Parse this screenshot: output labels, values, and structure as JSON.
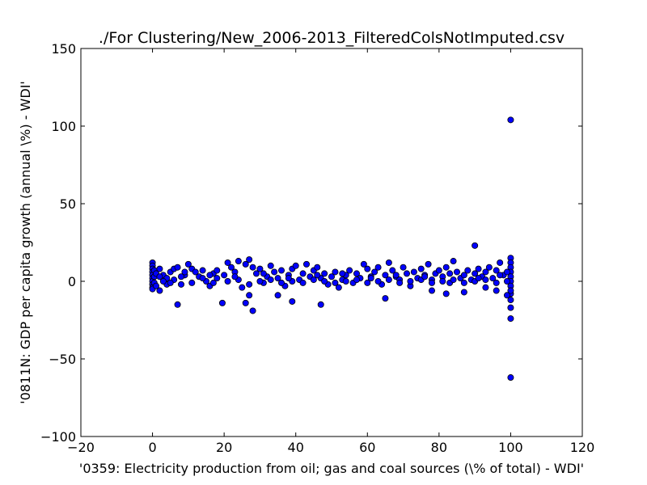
{
  "chart_data": {
    "type": "scatter",
    "title": "./For Clustering/New_2006-2013_FilteredColsNotImputed.csv",
    "xlabel": "'0359: Electricity production from oil; gas and coal sources  (\\% of total) - WDI'",
    "ylabel": "'0811N: GDP per capita growth  (annual \\%) - WDI'",
    "xlim": [
      -20,
      120
    ],
    "ylim": [
      -100,
      150
    ],
    "xticks": [
      -20,
      0,
      20,
      40,
      60,
      80,
      100,
      120
    ],
    "yticks": [
      -100,
      -50,
      0,
      50,
      100,
      150
    ],
    "xtick_labels": [
      "−20",
      "0",
      "20",
      "40",
      "60",
      "80",
      "100",
      "120"
    ],
    "ytick_labels": [
      "−100",
      "−50",
      "0",
      "50",
      "100",
      "150"
    ],
    "grid": false,
    "legend": "none",
    "marker_color": "#0000ff",
    "marker_edge_color": "#000000",
    "series": [
      {
        "points": [
          [
            100,
            104
          ],
          [
            100,
            -62
          ],
          [
            100,
            -24
          ],
          [
            100,
            -17
          ],
          [
            100,
            -12
          ],
          [
            100,
            -8
          ],
          [
            100,
            15
          ],
          [
            100,
            12
          ],
          [
            100,
            9
          ],
          [
            100,
            6
          ],
          [
            100,
            3
          ],
          [
            100,
            0
          ],
          [
            100,
            -3
          ],
          [
            100,
            -6
          ],
          [
            90,
            23
          ],
          [
            7,
            -15
          ],
          [
            19.5,
            -14
          ],
          [
            26,
            -14
          ],
          [
            28,
            -19
          ],
          [
            47,
            -15
          ],
          [
            39,
            -13
          ],
          [
            35,
            -9
          ],
          [
            27,
            -9
          ],
          [
            65,
            -11
          ],
          [
            82,
            -8
          ],
          [
            78,
            -6
          ],
          [
            96,
            -6
          ],
          [
            87,
            -7
          ],
          [
            99,
            -9
          ],
          [
            93,
            -4
          ],
          [
            0,
            12
          ],
          [
            0,
            10
          ],
          [
            0,
            8
          ],
          [
            0,
            6
          ],
          [
            0,
            4
          ],
          [
            0,
            2
          ],
          [
            0,
            0
          ],
          [
            0,
            -2
          ],
          [
            0,
            -4
          ],
          [
            0,
            -5
          ],
          [
            0.5,
            7
          ],
          [
            0.5,
            3
          ],
          [
            0.5,
            -1
          ],
          [
            1,
            5
          ],
          [
            1,
            -3
          ],
          [
            2,
            8
          ],
          [
            2,
            -6
          ],
          [
            3,
            4
          ],
          [
            4,
            2
          ],
          [
            4,
            -2
          ],
          [
            5,
            6
          ],
          [
            6,
            1
          ],
          [
            6,
            8
          ],
          [
            7,
            9
          ],
          [
            8,
            -2
          ],
          [
            9,
            4
          ],
          [
            10,
            11
          ],
          [
            11,
            8
          ],
          [
            12,
            6
          ],
          [
            13,
            3
          ],
          [
            14,
            7
          ],
          [
            15,
            0
          ],
          [
            16,
            -3
          ],
          [
            17,
            5
          ],
          [
            18,
            2
          ],
          [
            18,
            7
          ],
          [
            20,
            4
          ],
          [
            21,
            12
          ],
          [
            22,
            9
          ],
          [
            23,
            6
          ],
          [
            24,
            13
          ],
          [
            25,
            -4
          ],
          [
            26,
            11
          ],
          [
            27,
            14
          ],
          [
            28,
            9
          ],
          [
            29,
            5
          ],
          [
            30,
            8
          ],
          [
            31,
            -1
          ],
          [
            32,
            3
          ],
          [
            33,
            10
          ],
          [
            34,
            6
          ],
          [
            35,
            2
          ],
          [
            36,
            7
          ],
          [
            37,
            -3
          ],
          [
            38,
            4
          ],
          [
            39,
            8
          ],
          [
            40,
            10
          ],
          [
            41,
            1
          ],
          [
            42,
            5
          ],
          [
            43,
            11
          ],
          [
            44,
            3
          ],
          [
            45,
            7
          ],
          [
            46,
            9
          ],
          [
            47,
            2
          ],
          [
            48,
            5
          ],
          [
            49,
            -2
          ],
          [
            50,
            3
          ],
          [
            51,
            6
          ],
          [
            52,
            -4
          ],
          [
            53,
            1
          ],
          [
            54,
            4
          ],
          [
            55,
            7
          ],
          [
            56,
            -1
          ],
          [
            57,
            5
          ],
          [
            58,
            2
          ],
          [
            59,
            11
          ],
          [
            60,
            8
          ],
          [
            61,
            3
          ],
          [
            62,
            6
          ],
          [
            63,
            9
          ],
          [
            64,
            -2
          ],
          [
            65,
            4
          ],
          [
            66,
            12
          ],
          [
            67,
            7
          ],
          [
            68,
            3
          ],
          [
            69,
            1
          ],
          [
            70,
            9
          ],
          [
            71,
            5
          ],
          [
            72,
            -3
          ],
          [
            73,
            6
          ],
          [
            74,
            2
          ],
          [
            75,
            8
          ],
          [
            76,
            4
          ],
          [
            77,
            11
          ],
          [
            78,
            1
          ],
          [
            79,
            5
          ],
          [
            80,
            7
          ],
          [
            81,
            3
          ],
          [
            82,
            9
          ],
          [
            83,
            -1
          ],
          [
            84,
            13
          ],
          [
            85,
            6
          ],
          [
            86,
            2
          ],
          [
            87,
            4
          ],
          [
            88,
            7
          ],
          [
            89,
            1
          ],
          [
            90,
            5
          ],
          [
            91,
            8
          ],
          [
            92,
            3
          ],
          [
            93,
            6
          ],
          [
            94,
            9
          ],
          [
            95,
            2
          ],
          [
            96,
            7
          ],
          [
            97,
            12
          ],
          [
            98,
            4
          ],
          [
            99,
            6
          ],
          [
            3,
            0
          ],
          [
            5,
            -1
          ],
          [
            8,
            3
          ],
          [
            11,
            -1
          ],
          [
            14,
            2
          ],
          [
            17,
            -1
          ],
          [
            21,
            0
          ],
          [
            24,
            1
          ],
          [
            27,
            -2
          ],
          [
            30,
            0
          ],
          [
            33,
            1
          ],
          [
            36,
            -1
          ],
          [
            39,
            0
          ],
          [
            42,
            -1
          ],
          [
            45,
            1
          ],
          [
            48,
            0
          ],
          [
            51,
            -1
          ],
          [
            54,
            0
          ],
          [
            57,
            1
          ],
          [
            60,
            -1
          ],
          [
            63,
            0
          ],
          [
            66,
            1
          ],
          [
            69,
            -1
          ],
          [
            72,
            0
          ],
          [
            75,
            1
          ],
          [
            78,
            -1
          ],
          [
            81,
            0
          ],
          [
            84,
            1
          ],
          [
            87,
            -1
          ],
          [
            90,
            0
          ],
          [
            93,
            1
          ],
          [
            96,
            -1
          ],
          [
            99,
            0
          ],
          [
            2,
            3
          ],
          [
            9,
            6
          ],
          [
            16,
            4
          ],
          [
            23,
            3
          ],
          [
            31,
            5
          ],
          [
            38,
            2
          ],
          [
            46,
            4
          ],
          [
            53,
            5
          ],
          [
            61,
            2
          ],
          [
            68,
            4
          ],
          [
            76,
            3
          ],
          [
            83,
            5
          ],
          [
            91,
            2
          ],
          [
            97,
            4
          ]
        ]
      }
    ]
  }
}
